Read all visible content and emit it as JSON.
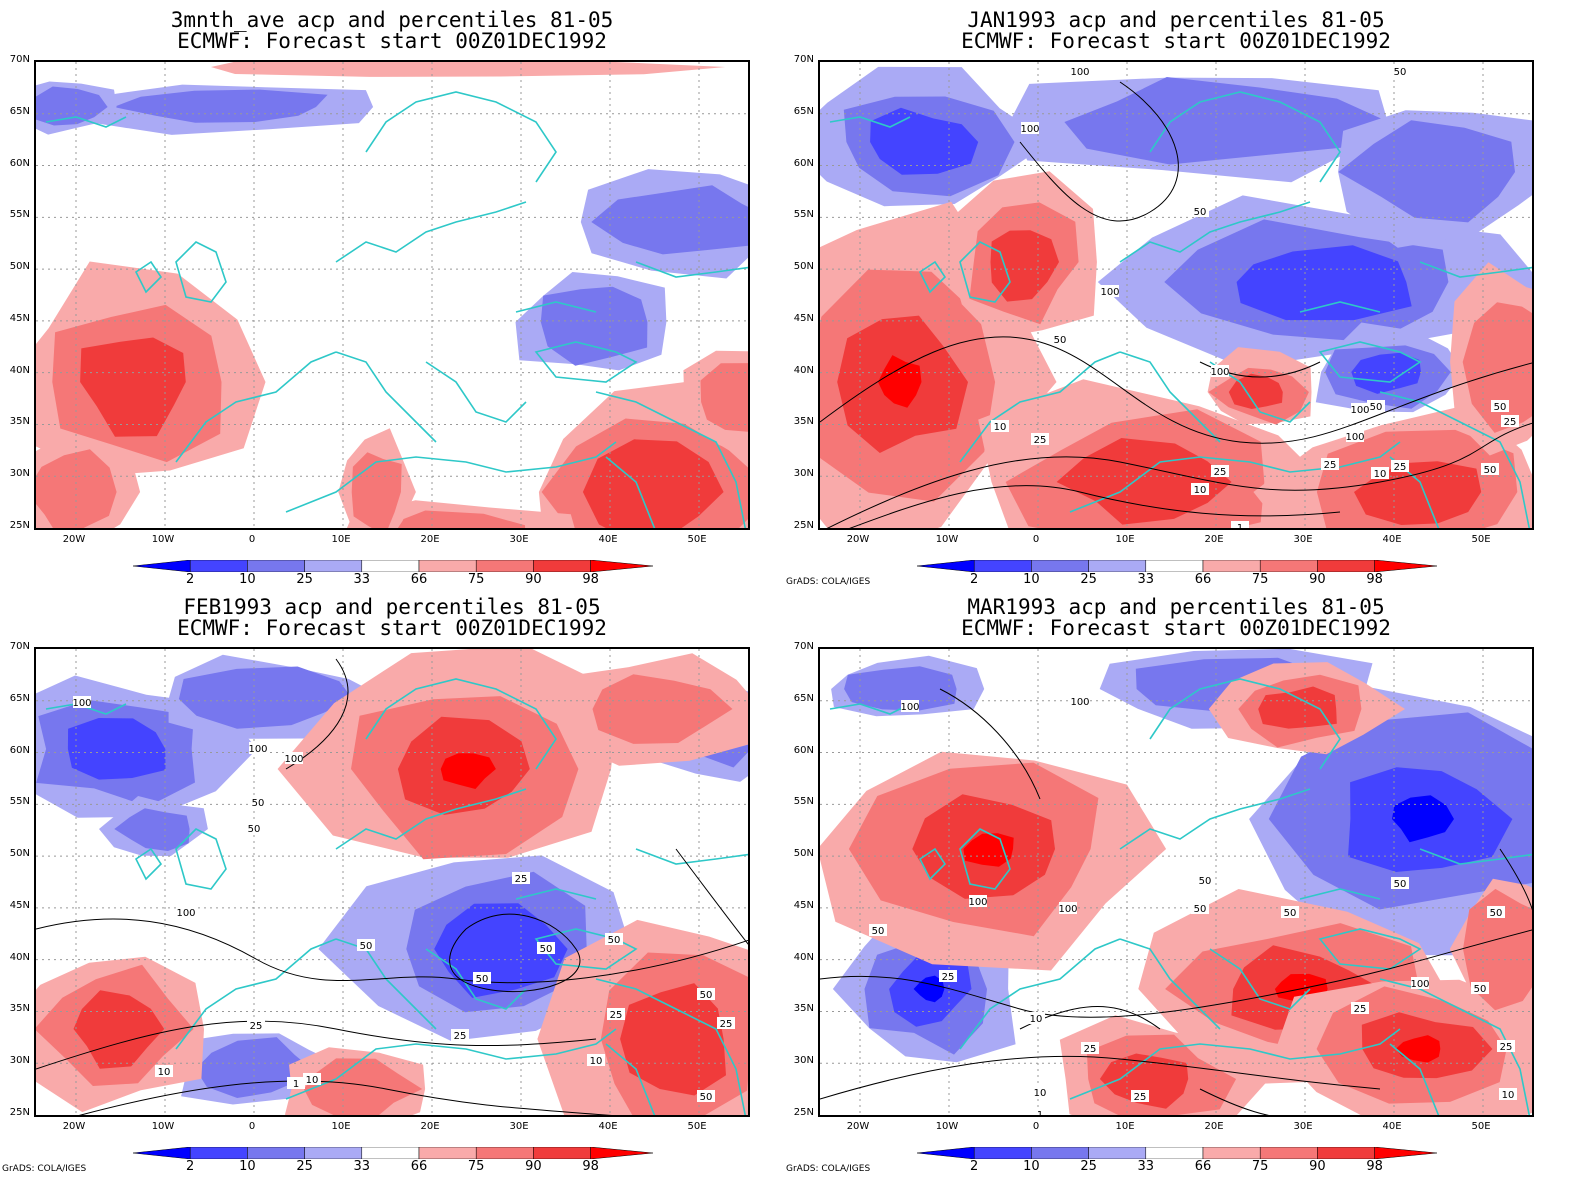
{
  "panels": [
    {
      "line1": "3mnth_ave acp and percentiles 81-05",
      "line2": "ECMWF: Forecast start 00Z01DEC1992",
      "credit": ""
    },
    {
      "line1": "JAN1993 acp and percentiles 81-05",
      "line2": "ECMWF: Forecast start 00Z01DEC1992",
      "credit": "GrADS: COLA/IGES"
    },
    {
      "line1": "FEB1993 acp and percentiles 81-05",
      "line2": "ECMWF: Forecast start 00Z01DEC1992",
      "credit": "GrADS: COLA/IGES"
    },
    {
      "line1": "MAR1993 acp and percentiles 81-05",
      "line2": "ECMWF: Forecast start 00Z01DEC1992",
      "credit": "GrADS: COLA/IGES"
    }
  ],
  "lat_labels": [
    "70N",
    "65N",
    "60N",
    "55N",
    "50N",
    "45N",
    "40N",
    "35N",
    "30N",
    "25N"
  ],
  "lon_labels": [
    "20W",
    "10W",
    "0",
    "10E",
    "20E",
    "30E",
    "40E",
    "50E"
  ],
  "colorbar": {
    "labels": [
      "2",
      "10",
      "25",
      "33",
      "66",
      "75",
      "90",
      "98"
    ],
    "colors": [
      "#0000ff",
      "#4444ff",
      "#7777ee",
      "#aaaaf5",
      "#ffffff",
      "#f9aaaa",
      "#f57777",
      "#f03b3b",
      "#ff0000"
    ]
  },
  "colors": {
    "coast": "#2ec8c8",
    "contour": "#000000",
    "grid": "#999999"
  },
  "contour_labels": [
    [
      "50",
      "100",
      "100",
      "50",
      "100",
      "100",
      "50",
      "10",
      "25",
      "25",
      "10",
      "1",
      "50",
      "100",
      "25",
      "50",
      "25",
      "10",
      "50",
      "25",
      "100"
    ],
    [
      "100",
      "100",
      "100",
      "50",
      "50",
      "25",
      "50",
      "50",
      "50",
      "100",
      "25",
      "25",
      "10",
      "10",
      "1",
      "50",
      "25",
      "50",
      "25",
      "10",
      "50"
    ],
    [
      "100",
      "100",
      "50",
      "10",
      "25",
      "50",
      "100",
      "100",
      "50",
      "25",
      "10",
      "1",
      "50",
      "25",
      "50",
      "50",
      "25",
      "10",
      "100",
      "25",
      "50"
    ]
  ]
}
